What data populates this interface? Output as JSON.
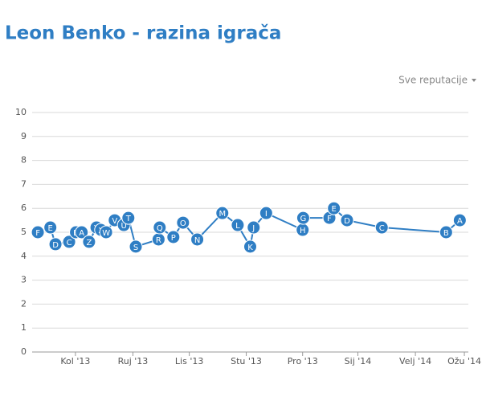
{
  "chart_data": {
    "type": "line",
    "title": "Leon Benko - razina igrača",
    "filter": "Sve reputacije",
    "x": [
      0.34,
      0.56,
      0.65,
      0.89,
      1.01,
      1.11,
      1.24,
      1.37,
      1.45,
      1.54,
      1.69,
      1.85,
      1.93,
      2.06,
      2.46,
      2.48,
      2.72,
      2.89,
      3.14,
      3.58,
      3.85,
      4.07,
      4.13,
      4.35,
      4.99,
      5.0,
      5.46,
      5.54,
      5.77,
      6.38,
      7.51,
      7.75
    ],
    "series": [
      {
        "color": "#2f7ec4",
        "values": [
          5.0,
          5.2,
          4.5,
          4.6,
          5.0,
          5.0,
          4.6,
          5.2,
          5.1,
          5.0,
          5.5,
          5.3,
          5.6,
          4.4,
          4.7,
          5.2,
          4.8,
          5.4,
          4.7,
          5.8,
          5.3,
          4.4,
          5.2,
          5.8,
          5.1,
          5.6,
          5.6,
          6.0,
          5.5,
          5.2,
          5.0,
          5.5
        ],
        "point_labels": [
          "F",
          "E",
          "D",
          "C",
          "B",
          "A",
          "Z",
          "Y",
          "X",
          "W",
          "V",
          "U",
          "T",
          "S",
          "R",
          "Q",
          "P",
          "O",
          "N",
          "M",
          "L",
          "K",
          "J",
          "I",
          "H",
          "G",
          "F",
          "E",
          "D",
          "C",
          "B",
          "A"
        ]
      }
    ],
    "xlim": [
      0.24,
      7.9
    ],
    "xticks": [
      {
        "value": 1,
        "label": "Kol '13"
      },
      {
        "value": 2.01,
        "label": "Ruj '13"
      },
      {
        "value": 3,
        "label": "Lis '13"
      },
      {
        "value": 4,
        "label": "Stu '13"
      },
      {
        "value": 4.99,
        "label": "Pro '13"
      },
      {
        "value": 5.96,
        "label": "Sij '14"
      },
      {
        "value": 6.97,
        "label": "Velj '14"
      },
      {
        "value": 7.83,
        "label": "Ožu '14"
      }
    ],
    "ylim": [
      0,
      10
    ],
    "yticks": [
      0,
      1,
      2,
      3,
      4,
      5,
      6,
      7,
      8,
      9,
      10
    ],
    "grid": true
  }
}
